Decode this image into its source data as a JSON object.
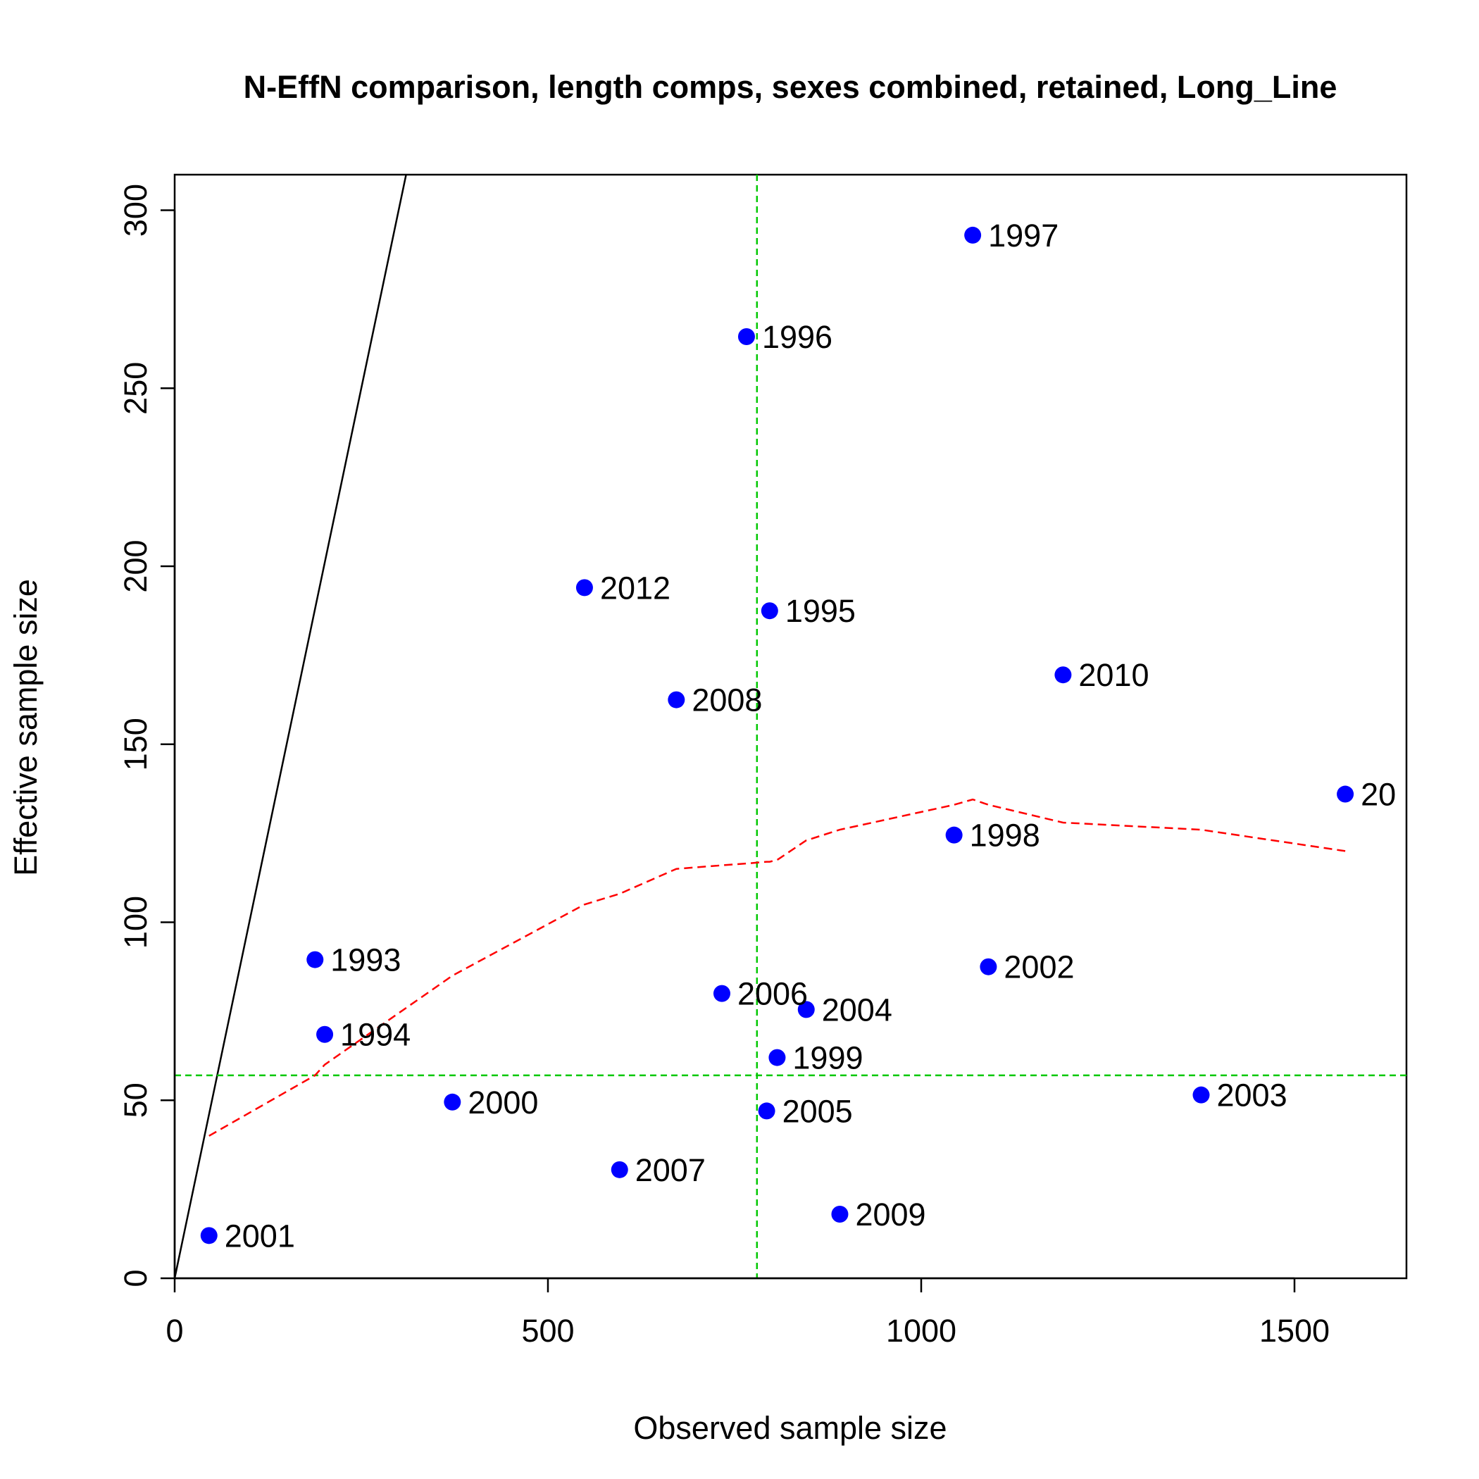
{
  "chart_data": {
    "type": "scatter",
    "title": "N-EffN comparison, length comps, sexes combined, retained, Long_Line",
    "xlabel": "Observed sample size",
    "ylabel": "Effective sample size",
    "xlim": [
      0,
      1650
    ],
    "ylim": [
      0,
      310
    ],
    "x_ticks": [
      0,
      500,
      1000,
      1500
    ],
    "y_ticks": [
      0,
      50,
      100,
      150,
      200,
      250,
      300
    ],
    "x_tick_labels": [
      "0",
      "500",
      "1000",
      "1500"
    ],
    "y_tick_labels": [
      "0",
      "50",
      "100",
      "150",
      "200",
      "250",
      "300"
    ],
    "grid": false,
    "points": [
      {
        "label": "1993",
        "x": 188,
        "y": 89.5
      },
      {
        "label": "1994",
        "x": 201,
        "y": 68.5
      },
      {
        "label": "1995",
        "x": 797,
        "y": 187.5
      },
      {
        "label": "1996",
        "x": 766,
        "y": 264.5
      },
      {
        "label": "1997",
        "x": 1069,
        "y": 293
      },
      {
        "label": "1998",
        "x": 1044,
        "y": 124.5
      },
      {
        "label": "1999",
        "x": 807,
        "y": 62
      },
      {
        "label": "2000",
        "x": 372,
        "y": 49.5
      },
      {
        "label": "2001",
        "x": 46,
        "y": 12
      },
      {
        "label": "2002",
        "x": 1090,
        "y": 87.5
      },
      {
        "label": "2003",
        "x": 1375,
        "y": 51.5
      },
      {
        "label": "2004",
        "x": 846,
        "y": 75.5
      },
      {
        "label": "2005",
        "x": 793,
        "y": 47
      },
      {
        "label": "2006",
        "x": 733,
        "y": 80
      },
      {
        "label": "2007",
        "x": 596,
        "y": 30.5
      },
      {
        "label": "2008",
        "x": 672,
        "y": 162.5
      },
      {
        "label": "2009",
        "x": 891,
        "y": 18
      },
      {
        "label": "2010",
        "x": 1190,
        "y": 169.5
      },
      {
        "label": "20",
        "x": 1568,
        "y": 136
      },
      {
        "label": "2012",
        "x": 549,
        "y": 194
      }
    ],
    "point_color": "#0000ff",
    "one_to_one_line": {
      "slope": 1,
      "color": "#000000"
    },
    "mean_lines": {
      "x": 780,
      "y": 57,
      "color": "#00c800",
      "style": "dashed"
    },
    "smoother": {
      "color": "#ff0000",
      "style": "dashed",
      "x": [
        46,
        188,
        201,
        372,
        549,
        596,
        672,
        733,
        766,
        793,
        797,
        807,
        846,
        891,
        1044,
        1069,
        1090,
        1190,
        1375,
        1568
      ],
      "y": [
        40,
        57,
        60,
        85,
        105,
        108,
        115,
        116,
        116.5,
        117,
        117,
        117.5,
        123,
        126,
        133,
        134.5,
        133,
        128,
        126,
        120
      ]
    }
  }
}
